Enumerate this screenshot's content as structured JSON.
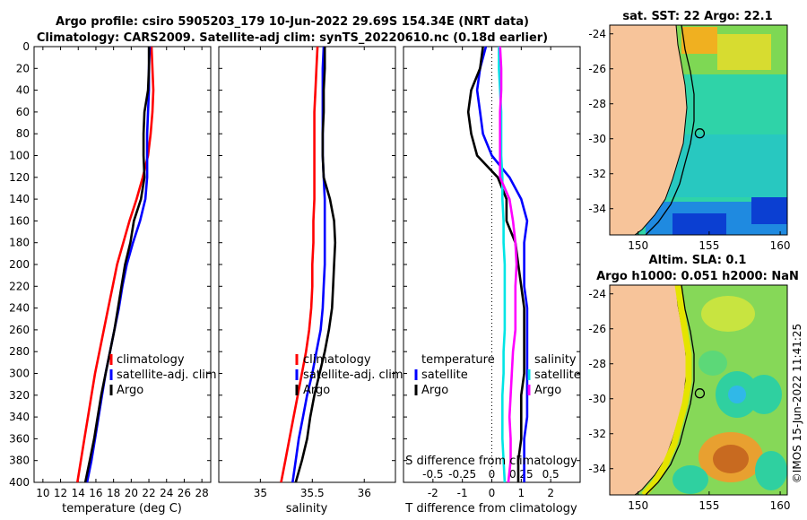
{
  "title": {
    "line1": "Argo profile: csiro 5905203_179 10-Jun-2022 29.69S 154.34E (NRT data)",
    "line2": "Climatology: CARS2009. Satellite-adj clim: synTS_20220610.nc (0.18d earlier)"
  },
  "colors": {
    "climatology": "#ff0000",
    "satellite": "#0000ff",
    "argo": "#000000",
    "cyan": "#00e5e5",
    "magenta": "#ff00ff",
    "land": "#f7c49a"
  },
  "depth_ticks": [
    "0",
    "20",
    "40",
    "60",
    "80",
    "100",
    "120",
    "140",
    "160",
    "180",
    "200",
    "220",
    "240",
    "260",
    "280",
    "300",
    "320",
    "340",
    "360",
    "380",
    "400"
  ],
  "chart_data": [
    {
      "type": "line",
      "name": "temperature-profile",
      "xlabel": "temperature (deg C)",
      "xlim": [
        9,
        29
      ],
      "ylim": [
        0,
        400
      ],
      "xticks": [
        "10",
        "12",
        "14",
        "16",
        "18",
        "20",
        "22",
        "24",
        "26",
        "28"
      ],
      "legend": [
        "climatology",
        "satellite-adj. clim",
        "Argo"
      ],
      "series": [
        {
          "name": "climatology",
          "depth": [
            0,
            20,
            40,
            60,
            80,
            100,
            120,
            140,
            160,
            180,
            200,
            220,
            240,
            260,
            280,
            300,
            320,
            340,
            360,
            380,
            400
          ],
          "values": [
            22.3,
            22.4,
            22.5,
            22.4,
            22.2,
            21.9,
            21.3,
            20.6,
            19.8,
            19.1,
            18.4,
            17.9,
            17.4,
            16.9,
            16.4,
            15.9,
            15.5,
            15.1,
            14.7,
            14.3,
            13.9
          ]
        },
        {
          "name": "satellite-adj. clim",
          "depth": [
            0,
            20,
            40,
            60,
            80,
            100,
            120,
            140,
            160,
            180,
            200,
            220,
            240,
            260,
            280,
            300,
            320,
            340,
            360,
            380,
            400
          ],
          "values": [
            22.1,
            22.0,
            22.0,
            21.9,
            21.8,
            21.8,
            21.8,
            21.6,
            21.0,
            20.2,
            19.5,
            19.0,
            18.6,
            18.1,
            17.6,
            17.1,
            16.7,
            16.3,
            15.9,
            15.5,
            15.0
          ]
        },
        {
          "name": "Argo",
          "depth": [
            0,
            20,
            40,
            60,
            80,
            100,
            120,
            140,
            160,
            180,
            200,
            220,
            240,
            260,
            280,
            300,
            320,
            340,
            360,
            380,
            400
          ],
          "values": [
            22.0,
            22.0,
            21.9,
            21.5,
            21.4,
            21.4,
            21.5,
            21.1,
            20.3,
            19.9,
            19.3,
            18.9,
            18.5,
            18.1,
            17.6,
            17.1,
            16.6,
            16.2,
            15.8,
            15.3,
            14.8
          ]
        }
      ]
    },
    {
      "type": "line",
      "name": "salinity-profile",
      "xlabel": "salinity",
      "xlim": [
        34.6,
        36.3
      ],
      "ylim": [
        0,
        400
      ],
      "xticks": [
        "35",
        "35.5",
        "36"
      ],
      "legend": [
        "climatology",
        "satellite-adj. clim",
        "Argo"
      ],
      "series": [
        {
          "name": "climatology",
          "depth": [
            0,
            20,
            40,
            60,
            80,
            100,
            120,
            140,
            160,
            180,
            200,
            220,
            240,
            260,
            280,
            300,
            320,
            340,
            360,
            380,
            400
          ],
          "values": [
            35.55,
            35.54,
            35.53,
            35.52,
            35.52,
            35.52,
            35.52,
            35.52,
            35.51,
            35.51,
            35.5,
            35.5,
            35.49,
            35.47,
            35.44,
            35.4,
            35.36,
            35.32,
            35.28,
            35.24,
            35.2
          ]
        },
        {
          "name": "satellite-adj. clim",
          "depth": [
            0,
            20,
            40,
            60,
            80,
            100,
            120,
            140,
            160,
            180,
            200,
            220,
            240,
            260,
            280,
            300,
            320,
            340,
            360,
            380,
            400
          ],
          "values": [
            35.61,
            35.6,
            35.6,
            35.6,
            35.6,
            35.6,
            35.61,
            35.62,
            35.62,
            35.62,
            35.62,
            35.61,
            35.6,
            35.58,
            35.54,
            35.5,
            35.45,
            35.41,
            35.37,
            35.34,
            35.31
          ]
        },
        {
          "name": "Argo",
          "depth": [
            0,
            20,
            40,
            60,
            80,
            100,
            120,
            140,
            160,
            180,
            200,
            220,
            240,
            260,
            280,
            300,
            320,
            340,
            360,
            380,
            400
          ],
          "values": [
            35.62,
            35.62,
            35.61,
            35.61,
            35.6,
            35.6,
            35.61,
            35.67,
            35.71,
            35.72,
            35.71,
            35.7,
            35.69,
            35.66,
            35.62,
            35.57,
            35.52,
            35.48,
            35.45,
            35.4,
            35.34
          ]
        }
      ]
    },
    {
      "type": "line",
      "name": "difference-profile",
      "xlabel": "T difference from climatology",
      "xlabel_top": "S difference from climatology",
      "xlim": [
        -3,
        3
      ],
      "ylim": [
        0,
        400
      ],
      "xticks": [
        "-2",
        "-1",
        "0",
        "1",
        "2"
      ],
      "xticks_top": [
        "-0.5",
        "-0.25",
        "0",
        "0.25",
        "0.5"
      ],
      "legend_left": [
        "temperature",
        "satellite",
        "Argo"
      ],
      "legend_right": [
        "salinity",
        "satellite",
        "Argo"
      ],
      "series": [
        {
          "name": "temperature satellite",
          "depth": [
            0,
            20,
            40,
            60,
            80,
            100,
            120,
            140,
            160,
            180,
            200,
            220,
            240,
            260,
            280,
            300,
            320,
            340,
            360,
            380,
            400
          ],
          "values": [
            -0.2,
            -0.4,
            -0.5,
            -0.4,
            -0.3,
            0.0,
            0.6,
            1.0,
            1.2,
            1.1,
            1.1,
            1.1,
            1.2,
            1.2,
            1.2,
            1.2,
            1.2,
            1.2,
            1.1,
            1.1,
            1.1
          ]
        },
        {
          "name": "temperature Argo",
          "depth": [
            0,
            20,
            40,
            60,
            80,
            100,
            120,
            140,
            160,
            180,
            200,
            220,
            240,
            260,
            280,
            300,
            320,
            340,
            360,
            380,
            400
          ],
          "values": [
            -0.3,
            -0.4,
            -0.7,
            -0.8,
            -0.7,
            -0.5,
            0.2,
            0.5,
            0.5,
            0.8,
            0.9,
            1.0,
            1.1,
            1.1,
            1.1,
            1.1,
            1.0,
            1.0,
            1.0,
            0.9,
            0.9
          ]
        },
        {
          "name": "salinity satellite",
          "depth": [
            0,
            20,
            40,
            60,
            80,
            100,
            120,
            140,
            160,
            180,
            200,
            220,
            240,
            260,
            280,
            300,
            320,
            340,
            360,
            380,
            400
          ],
          "values": [
            0.06,
            0.06,
            0.07,
            0.08,
            0.08,
            0.08,
            0.09,
            0.09,
            0.1,
            0.1,
            0.11,
            0.11,
            0.11,
            0.11,
            0.1,
            0.1,
            0.09,
            0.09,
            0.09,
            0.1,
            0.11
          ]
        },
        {
          "name": "salinity Argo",
          "depth": [
            0,
            20,
            40,
            60,
            80,
            100,
            120,
            140,
            160,
            180,
            200,
            220,
            240,
            260,
            280,
            300,
            320,
            340,
            360,
            380,
            400
          ],
          "values": [
            0.07,
            0.08,
            0.08,
            0.07,
            0.07,
            0.07,
            0.07,
            0.15,
            0.18,
            0.2,
            0.21,
            0.2,
            0.2,
            0.2,
            0.18,
            0.17,
            0.16,
            0.15,
            0.16,
            0.16,
            0.14
          ]
        }
      ]
    },
    {
      "type": "heatmap",
      "name": "sst-map",
      "title": "sat. SST: 22 Argo: 22.1",
      "xlim": [
        148,
        160.5
      ],
      "ylim": [
        -35.5,
        -23.5
      ],
      "xticks": [
        "150",
        "155",
        "160"
      ],
      "yticks": [
        "-24",
        "-26",
        "-28",
        "-30",
        "-32",
        "-34"
      ],
      "profile_location": {
        "lon": 154.34,
        "lat": -29.69
      }
    },
    {
      "type": "heatmap",
      "name": "sla-map",
      "title_line1": "Altim. SLA: 0.1",
      "title_line2": "Argo h1000: 0.051 h2000: NaN",
      "xlim": [
        148,
        160.5
      ],
      "ylim": [
        -35.5,
        -23.5
      ],
      "xticks": [
        "150",
        "155",
        "160"
      ],
      "yticks": [
        "-24",
        "-26",
        "-28",
        "-30",
        "-32",
        "-34"
      ],
      "profile_location": {
        "lon": 154.34,
        "lat": -29.69
      }
    }
  ],
  "watermark": "©IMOS 15-Jun-2022 11:41:25"
}
